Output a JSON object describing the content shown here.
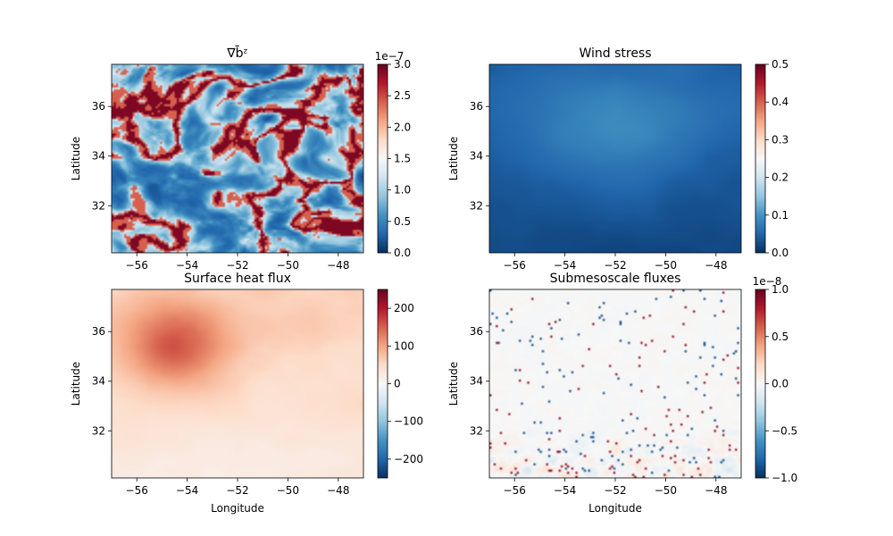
{
  "chart_data": [
    {
      "type": "heatmap",
      "title": "∇b̄ᶻ",
      "xlabel": "",
      "ylabel": "Latitude",
      "xlim": [
        -57,
        -47
      ],
      "ylim": [
        30.1,
        37.7
      ],
      "xticks": [
        -56,
        -54,
        -52,
        -50,
        -48
      ],
      "yticks": [
        32,
        34,
        36
      ],
      "xtick_labels": [
        "−56",
        "−54",
        "−52",
        "−50",
        "−48"
      ],
      "ytick_labels": [
        "32",
        "34",
        "36"
      ],
      "colormap": "RdBu_r",
      "colorbar": {
        "range": [
          0,
          3.0
        ],
        "ticks": [
          0,
          0.5,
          1.0,
          1.5,
          2.0,
          2.5,
          3.0
        ],
        "tick_labels": [
          "0.0",
          "0.5",
          "1.0",
          "1.5",
          "2.0",
          "2.5",
          "3.0"
        ],
        "offset_text": "1e−7"
      },
      "pattern": "turbulent-filaments"
    },
    {
      "type": "heatmap",
      "title": "Wind stress",
      "xlabel": "",
      "ylabel": "Latitude",
      "xlim": [
        -57,
        -47
      ],
      "ylim": [
        30.1,
        37.7
      ],
      "xticks": [
        -56,
        -54,
        -52,
        -50,
        -48
      ],
      "yticks": [
        32,
        34,
        36
      ],
      "xtick_labels": [
        "−56",
        "−54",
        "−52",
        "−50",
        "−48"
      ],
      "ytick_labels": [
        "32",
        "34",
        "36"
      ],
      "colormap": "RdBu_r",
      "colorbar": {
        "range": [
          0,
          0.5
        ],
        "ticks": [
          0,
          0.1,
          0.2,
          0.3,
          0.4,
          0.5
        ],
        "tick_labels": [
          "0.0",
          "0.1",
          "0.2",
          "0.3",
          "0.4",
          "0.5"
        ],
        "offset_text": ""
      },
      "pattern": "smooth-low"
    },
    {
      "type": "heatmap",
      "title": "Surface heat flux",
      "xlabel": "Longitude",
      "ylabel": "Latitude",
      "xlim": [
        -57,
        -47
      ],
      "ylim": [
        30.1,
        37.7
      ],
      "xticks": [
        -56,
        -54,
        -52,
        -50,
        -48
      ],
      "yticks": [
        32,
        34,
        36
      ],
      "xtick_labels": [
        "−56",
        "−54",
        "−52",
        "−50",
        "−48"
      ],
      "ytick_labels": [
        "32",
        "34",
        "36"
      ],
      "colormap": "RdBu_r",
      "colorbar": {
        "range": [
          -250,
          250
        ],
        "ticks": [
          -200,
          -100,
          0,
          100,
          200
        ],
        "tick_labels": [
          "−200",
          "−100",
          "0",
          "100",
          "200"
        ],
        "offset_text": ""
      },
      "pattern": "smooth-warm"
    },
    {
      "type": "heatmap",
      "title": "Submesoscale fluxes",
      "xlabel": "Longitude",
      "ylabel": "Latitude",
      "xlim": [
        -57,
        -47
      ],
      "ylim": [
        30.1,
        37.7
      ],
      "xticks": [
        -56,
        -54,
        -52,
        -50,
        -48
      ],
      "yticks": [
        32,
        34,
        36
      ],
      "xtick_labels": [
        "−56",
        "−54",
        "−52",
        "−50",
        "−48"
      ],
      "ytick_labels": [
        "32",
        "34",
        "36"
      ],
      "colormap": "RdBu_r",
      "colorbar": {
        "range": [
          -1.0,
          1.0
        ],
        "ticks": [
          -1.0,
          -0.5,
          0.0,
          0.5,
          1.0
        ],
        "tick_labels": [
          "−1.0",
          "−0.5",
          "0.0",
          "0.5",
          "1.0"
        ],
        "offset_text": "1e−8"
      },
      "pattern": "sparse-speckle"
    }
  ]
}
